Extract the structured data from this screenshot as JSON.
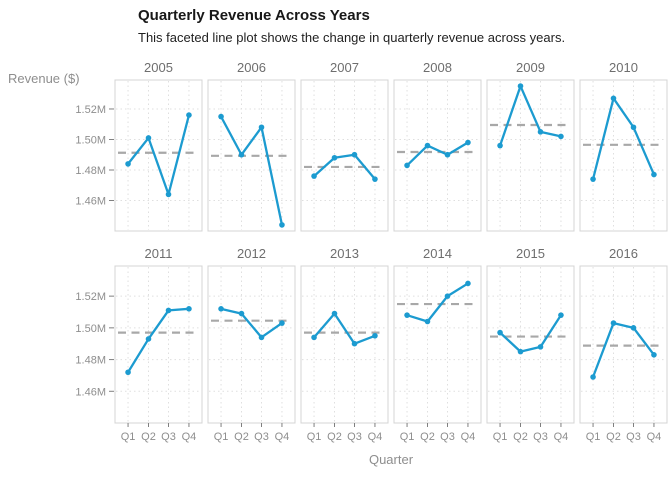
{
  "chart_data": {
    "type": "line",
    "faceted": true,
    "facet_layout": {
      "rows": 2,
      "cols": 6
    },
    "title": "Quarterly Revenue Across Years",
    "subtitle": "This faceted line plot shows the change in quarterly revenue across years.",
    "xlabel": "Quarter",
    "ylabel": "Revenue ($)",
    "categories": [
      "Q1",
      "Q2",
      "Q3",
      "Q4"
    ],
    "value_unit": "millions of dollars",
    "ylim": [
      1.44,
      1.539
    ],
    "y_ticks": {
      "values": [
        1.46,
        1.48,
        1.5,
        1.52
      ],
      "labels": [
        "1.46M",
        "1.48M",
        "1.50M",
        "1.52M"
      ]
    },
    "grid": "dotted",
    "legend": "none",
    "reference_line": "dashed horizontal mean per facet",
    "series": [
      {
        "facet": "2005",
        "values": [
          1.484,
          1.501,
          1.464,
          1.516
        ],
        "mean": 1.4913
      },
      {
        "facet": "2006",
        "values": [
          1.515,
          1.49,
          1.508,
          1.444
        ],
        "mean": 1.4893
      },
      {
        "facet": "2007",
        "values": [
          1.476,
          1.488,
          1.49,
          1.474
        ],
        "mean": 1.482
      },
      {
        "facet": "2008",
        "values": [
          1.483,
          1.496,
          1.49,
          1.498
        ],
        "mean": 1.4918
      },
      {
        "facet": "2009",
        "values": [
          1.496,
          1.535,
          1.505,
          1.502
        ],
        "mean": 1.5095
      },
      {
        "facet": "2010",
        "values": [
          1.474,
          1.527,
          1.508,
          1.477
        ],
        "mean": 1.4965
      },
      {
        "facet": "2011",
        "values": [
          1.472,
          1.493,
          1.511,
          1.512
        ],
        "mean": 1.497
      },
      {
        "facet": "2012",
        "values": [
          1.512,
          1.509,
          1.494,
          1.503
        ],
        "mean": 1.5045
      },
      {
        "facet": "2013",
        "values": [
          1.494,
          1.509,
          1.49,
          1.495
        ],
        "mean": 1.497
      },
      {
        "facet": "2014",
        "values": [
          1.508,
          1.504,
          1.52,
          1.528
        ],
        "mean": 1.515
      },
      {
        "facet": "2015",
        "values": [
          1.497,
          1.485,
          1.488,
          1.508
        ],
        "mean": 1.4945
      },
      {
        "facet": "2016",
        "values": [
          1.469,
          1.503,
          1.5,
          1.483
        ],
        "mean": 1.4888
      }
    ],
    "colors": {
      "line": "#1C9BD0",
      "point": "#1C9BD0",
      "mean_line": "#A8A8A8",
      "panel_border": "#D4D4D4",
      "grid": "#DFDFDF",
      "tick_mark": "#7F7F7F",
      "tick_text": "#8E8E8E",
      "strip_text": "#6E6E6E",
      "title_text": "#181818",
      "background": "#FFFFFF"
    }
  }
}
